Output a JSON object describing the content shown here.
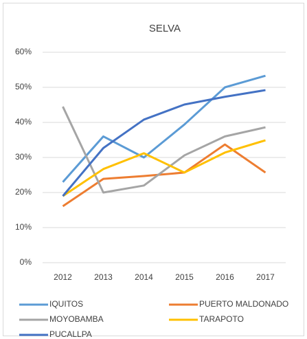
{
  "chart_data": {
    "type": "line",
    "title": "SELVA",
    "categories": [
      "2012",
      "2013",
      "2014",
      "2015",
      "2016",
      "2017"
    ],
    "series": [
      {
        "name": "IQUITOS",
        "color": "#5b9bd5",
        "values": [
          23,
          36,
          30,
          39.4,
          50,
          53.3
        ]
      },
      {
        "name": "PUERTO MALDONADO",
        "color": "#ed7d31",
        "values": [
          16.1,
          23.9,
          24.7,
          25.7,
          33.7,
          25.7
        ]
      },
      {
        "name": "MOYOBAMBA",
        "color": "#a5a5a5",
        "values": [
          44.5,
          20,
          22,
          30.6,
          36,
          38.6
        ]
      },
      {
        "name": "TARAPOTO",
        "color": "#ffc000",
        "values": [
          19,
          26.7,
          31.2,
          25.7,
          31.4,
          34.9
        ]
      },
      {
        "name": "PUCALLPA",
        "color": "#4472c4",
        "values": [
          19,
          32.7,
          40.8,
          45.1,
          47.3,
          49.2
        ]
      }
    ],
    "ylim": [
      0,
      60
    ],
    "yticks": [
      {
        "value": 0,
        "label": "0%"
      },
      {
        "value": 10,
        "label": "10%"
      },
      {
        "value": 20,
        "label": "20%"
      },
      {
        "value": 30,
        "label": "30%"
      },
      {
        "value": 40,
        "label": "40%"
      },
      {
        "value": 50,
        "label": "50%"
      },
      {
        "value": 60,
        "label": "60%"
      }
    ],
    "grid": true
  }
}
